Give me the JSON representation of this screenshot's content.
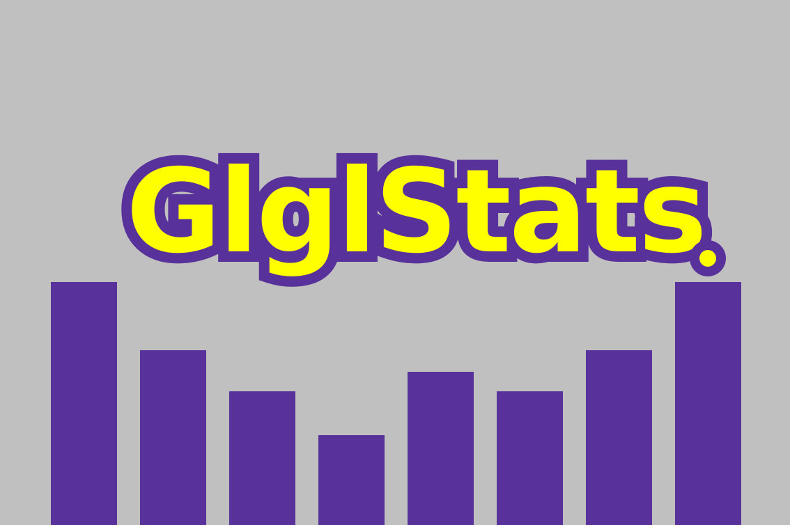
{
  "logo": {
    "wordmark": "GlglStats",
    "text_color": "#ffff00",
    "outline_color": "#58319a"
  },
  "background_color": "#c0c0c0",
  "bar_color": "#58319a",
  "bar_levels": [
    1.0,
    0.72,
    0.55,
    0.37,
    0.63,
    0.55,
    0.72,
    1.0
  ]
}
